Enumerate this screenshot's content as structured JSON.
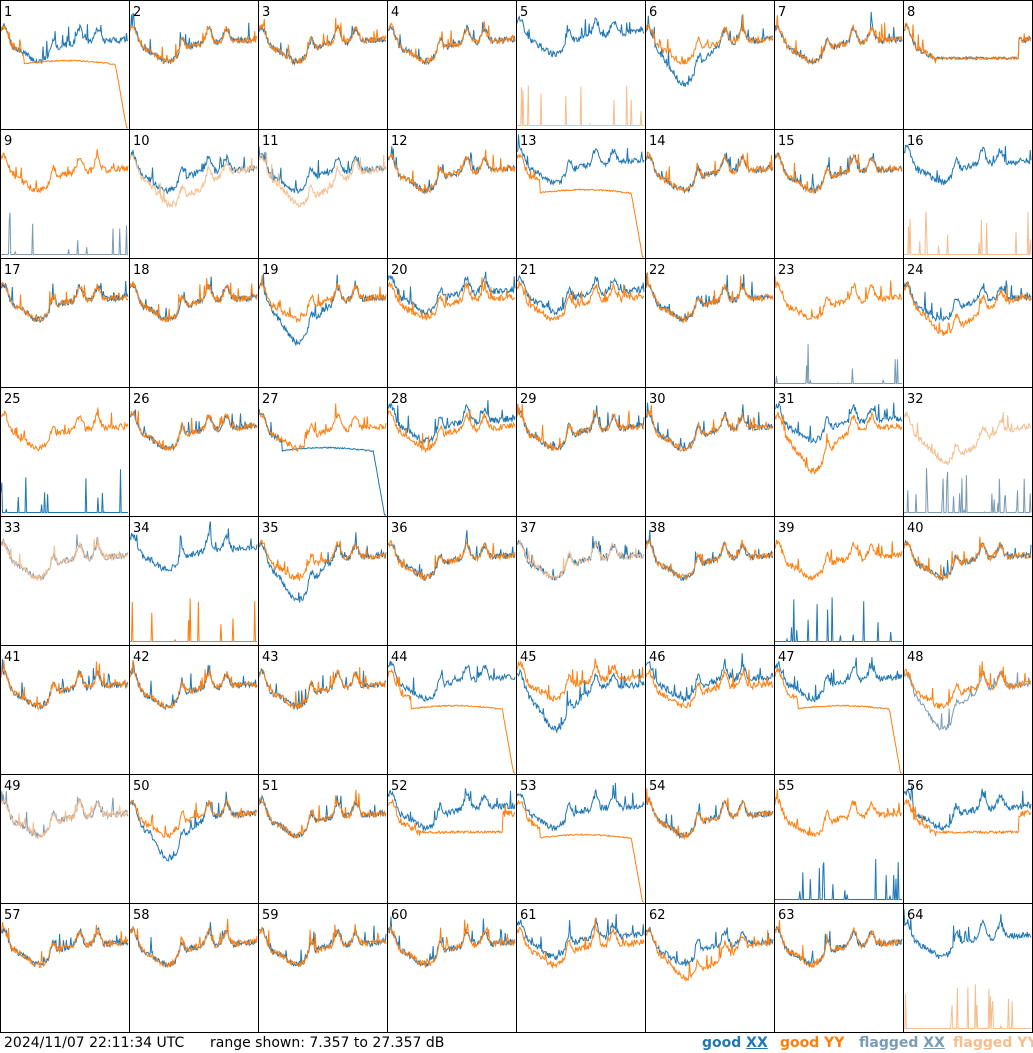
{
  "timestamp": "2024/11/07 22:11:34 UTC",
  "range_text": "range shown: 7.357 to 27.357 dB",
  "legend": [
    {
      "key": "good_xx",
      "word": "good",
      "pol": "XX",
      "color": "#1f77b4"
    },
    {
      "key": "good_yy",
      "word": "good",
      "pol": "YY",
      "color": "#ff7f0e"
    },
    {
      "key": "flagged_xx",
      "word": "flagged",
      "pol": "XX",
      "color": "#7a9bb5"
    },
    {
      "key": "flagged_yy",
      "word": "flagged",
      "pol": "YY",
      "color": "#f6be8e"
    }
  ],
  "chart_data": {
    "type": "line",
    "title": "",
    "xlabel": "",
    "ylabel": "",
    "ylim": [
      7.357,
      27.357
    ],
    "y_units": "dB",
    "grid_rows": 8,
    "grid_cols": 8,
    "series_legend": [
      "good XX",
      "good YY",
      "flagged XX",
      "flagged YY"
    ],
    "panels": [
      {
        "label": "1",
        "xx": "good",
        "yy": "good",
        "xx_shape": "normal",
        "yy_shape": "dropend"
      },
      {
        "label": "2",
        "xx": "good",
        "yy": "good",
        "xx_shape": "normal",
        "yy_shape": "normal"
      },
      {
        "label": "3",
        "xx": "good",
        "yy": "good",
        "xx_shape": "normal",
        "yy_shape": "normal"
      },
      {
        "label": "4",
        "xx": "good",
        "yy": "good",
        "xx_shape": "normal",
        "yy_shape": "normal"
      },
      {
        "label": "5",
        "xx": "good",
        "yy": "flagged",
        "xx_shape": "high",
        "yy_shape": "spiky"
      },
      {
        "label": "6",
        "xx": "good",
        "yy": "good",
        "xx_shape": "bowl",
        "yy_shape": "normal"
      },
      {
        "label": "7",
        "xx": "good",
        "yy": "good",
        "xx_shape": "normal",
        "yy_shape": "normal"
      },
      {
        "label": "8",
        "xx": "good",
        "yy": "good",
        "xx_shape": "plateau",
        "yy_shape": "plateau"
      },
      {
        "label": "9",
        "xx": "flagged",
        "yy": "good",
        "xx_shape": "spiky",
        "yy_shape": "normal"
      },
      {
        "label": "10",
        "xx": "good",
        "yy": "flagged",
        "xx_shape": "normal",
        "yy_shape": "lowdip"
      },
      {
        "label": "11",
        "xx": "good",
        "yy": "flagged",
        "xx_shape": "normal",
        "yy_shape": "lowdip"
      },
      {
        "label": "12",
        "xx": "good",
        "yy": "good",
        "xx_shape": "normal",
        "yy_shape": "normal"
      },
      {
        "label": "13",
        "xx": "good",
        "yy": "good",
        "xx_shape": "high",
        "yy_shape": "dropend"
      },
      {
        "label": "14",
        "xx": "good",
        "yy": "good",
        "xx_shape": "normal",
        "yy_shape": "normal"
      },
      {
        "label": "15",
        "xx": "good",
        "yy": "good",
        "xx_shape": "normal",
        "yy_shape": "normal"
      },
      {
        "label": "16",
        "xx": "good",
        "yy": "flagged",
        "xx_shape": "high",
        "yy_shape": "spiky"
      },
      {
        "label": "17",
        "xx": "good",
        "yy": "good",
        "xx_shape": "normal",
        "yy_shape": "normal"
      },
      {
        "label": "18",
        "xx": "good",
        "yy": "good",
        "xx_shape": "normal",
        "yy_shape": "normal"
      },
      {
        "label": "19",
        "xx": "good",
        "yy": "good",
        "xx_shape": "bowl",
        "yy_shape": "normal"
      },
      {
        "label": "20",
        "xx": "good",
        "yy": "good",
        "xx_shape": "high",
        "yy_shape": "normal"
      },
      {
        "label": "21",
        "xx": "good",
        "yy": "good",
        "xx_shape": "high",
        "yy_shape": "normal"
      },
      {
        "label": "22",
        "xx": "good",
        "yy": "good",
        "xx_shape": "normal",
        "yy_shape": "normal"
      },
      {
        "label": "23",
        "xx": "flagged",
        "yy": "good",
        "xx_shape": "spiky",
        "yy_shape": "normal"
      },
      {
        "label": "24",
        "xx": "good",
        "yy": "good",
        "xx_shape": "normal",
        "yy_shape": "lowdip"
      },
      {
        "label": "25",
        "xx": "good",
        "yy": "good",
        "xx_shape": "spiky",
        "yy_shape": "normal"
      },
      {
        "label": "26",
        "xx": "good",
        "yy": "good",
        "xx_shape": "normal",
        "yy_shape": "normal"
      },
      {
        "label": "27",
        "xx": "good",
        "yy": "good",
        "xx_shape": "dropend",
        "yy_shape": "normal"
      },
      {
        "label": "28",
        "xx": "good",
        "yy": "good",
        "xx_shape": "high",
        "yy_shape": "normal"
      },
      {
        "label": "29",
        "xx": "good",
        "yy": "good",
        "xx_shape": "normal",
        "yy_shape": "normal"
      },
      {
        "label": "30",
        "xx": "good",
        "yy": "good",
        "xx_shape": "normal",
        "yy_shape": "normal"
      },
      {
        "label": "31",
        "xx": "good",
        "yy": "good",
        "xx_shape": "high",
        "yy_shape": "bowl"
      },
      {
        "label": "32",
        "xx": "flagged",
        "yy": "flagged",
        "xx_shape": "spiky",
        "yy_shape": "lowdip"
      },
      {
        "label": "33",
        "xx": "flagged",
        "yy": "flagged",
        "xx_shape": "normal",
        "yy_shape": "normal"
      },
      {
        "label": "34",
        "xx": "good",
        "yy": "good",
        "xx_shape": "high",
        "yy_shape": "spiky"
      },
      {
        "label": "35",
        "xx": "good",
        "yy": "good",
        "xx_shape": "bowl",
        "yy_shape": "normal"
      },
      {
        "label": "36",
        "xx": "good",
        "yy": "good",
        "xx_shape": "normal",
        "yy_shape": "normal"
      },
      {
        "label": "37",
        "xx": "good",
        "yy": "flagged",
        "xx_shape": "normal",
        "yy_shape": "normal"
      },
      {
        "label": "38",
        "xx": "good",
        "yy": "good",
        "xx_shape": "normal",
        "yy_shape": "normal"
      },
      {
        "label": "39",
        "xx": "good",
        "yy": "good",
        "xx_shape": "spiky",
        "yy_shape": "normal"
      },
      {
        "label": "40",
        "xx": "good",
        "yy": "good",
        "xx_shape": "normal",
        "yy_shape": "normal"
      },
      {
        "label": "41",
        "xx": "good",
        "yy": "good",
        "xx_shape": "normal",
        "yy_shape": "normal"
      },
      {
        "label": "42",
        "xx": "good",
        "yy": "good",
        "xx_shape": "normal",
        "yy_shape": "normal"
      },
      {
        "label": "43",
        "xx": "good",
        "yy": "good",
        "xx_shape": "normal",
        "yy_shape": "normal"
      },
      {
        "label": "44",
        "xx": "good",
        "yy": "good",
        "xx_shape": "high",
        "yy_shape": "dropend"
      },
      {
        "label": "45",
        "xx": "good",
        "yy": "good",
        "xx_shape": "bowl",
        "yy_shape": "high"
      },
      {
        "label": "46",
        "xx": "good",
        "yy": "good",
        "xx_shape": "high",
        "yy_shape": "normal"
      },
      {
        "label": "47",
        "xx": "good",
        "yy": "good",
        "xx_shape": "high",
        "yy_shape": "dropend"
      },
      {
        "label": "48",
        "xx": "flagged",
        "yy": "good",
        "xx_shape": "bowl",
        "yy_shape": "normal"
      },
      {
        "label": "49",
        "xx": "flagged",
        "yy": "flagged",
        "xx_shape": "normal",
        "yy_shape": "normal"
      },
      {
        "label": "50",
        "xx": "good",
        "yy": "good",
        "xx_shape": "bowl",
        "yy_shape": "normal"
      },
      {
        "label": "51",
        "xx": "good",
        "yy": "good",
        "xx_shape": "normal",
        "yy_shape": "normal"
      },
      {
        "label": "52",
        "xx": "good",
        "yy": "good",
        "xx_shape": "high",
        "yy_shape": "plateau"
      },
      {
        "label": "53",
        "xx": "good",
        "yy": "good",
        "xx_shape": "high",
        "yy_shape": "dropend"
      },
      {
        "label": "54",
        "xx": "good",
        "yy": "good",
        "xx_shape": "normal",
        "yy_shape": "normal"
      },
      {
        "label": "55",
        "xx": "good",
        "yy": "good",
        "xx_shape": "spiky",
        "yy_shape": "normal"
      },
      {
        "label": "56",
        "xx": "good",
        "yy": "good",
        "xx_shape": "high",
        "yy_shape": "plateau"
      },
      {
        "label": "57",
        "xx": "good",
        "yy": "good",
        "xx_shape": "normal",
        "yy_shape": "normal"
      },
      {
        "label": "58",
        "xx": "good",
        "yy": "good",
        "xx_shape": "normal",
        "yy_shape": "normal"
      },
      {
        "label": "59",
        "xx": "good",
        "yy": "good",
        "xx_shape": "normal",
        "yy_shape": "normal"
      },
      {
        "label": "60",
        "xx": "good",
        "yy": "good",
        "xx_shape": "normal",
        "yy_shape": "normal"
      },
      {
        "label": "61",
        "xx": "good",
        "yy": "good",
        "xx_shape": "high",
        "yy_shape": "normal"
      },
      {
        "label": "62",
        "xx": "good",
        "yy": "good",
        "xx_shape": "normal",
        "yy_shape": "lowdip"
      },
      {
        "label": "63",
        "xx": "good",
        "yy": "good",
        "xx_shape": "normal",
        "yy_shape": "normal"
      },
      {
        "label": "64",
        "xx": "good",
        "yy": "flagged",
        "xx_shape": "high",
        "yy_shape": "spiky"
      }
    ]
  }
}
